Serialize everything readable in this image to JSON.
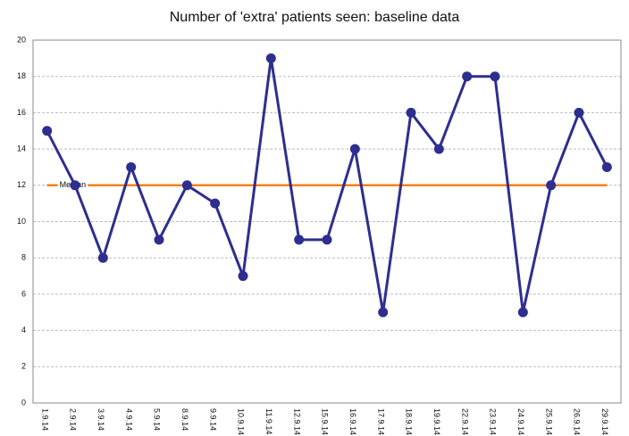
{
  "chart_data": {
    "type": "line",
    "title": "Number of 'extra' patients seen: baseline data",
    "categories": [
      "1.9.14",
      "2.9.14",
      "3.9.14",
      "4.9.14",
      "5.9.14",
      "8.9.14",
      "9.9.14",
      "10.9.14",
      "11.9.14",
      "12.9.14",
      "15.9.14",
      "16.9.14",
      "17.9.14",
      "18.9.14",
      "19.9.14",
      "22.9.14",
      "23.9.14",
      "24.9.14",
      "25.9.14",
      "26.9.14",
      "29.9.14"
    ],
    "series": [
      {
        "color": "#2e2e8f",
        "values": [
          15,
          12,
          8,
          13,
          9,
          12,
          11,
          7,
          19,
          9,
          9,
          14,
          5,
          16,
          14,
          18,
          18,
          5,
          12,
          16,
          13
        ]
      }
    ],
    "median": {
      "name": "Median",
      "value": 12,
      "color": "#f0821e"
    },
    "ylim": [
      0,
      20
    ],
    "yticks": [
      0,
      2,
      4,
      6,
      8,
      10,
      12,
      14,
      16,
      18,
      20
    ],
    "grid": true
  }
}
